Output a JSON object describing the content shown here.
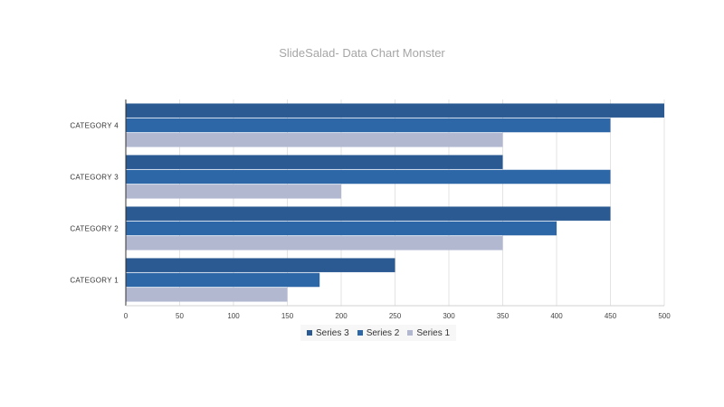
{
  "chart_data": {
    "type": "bar",
    "orientation": "horizontal",
    "title": "SlideSalad-  Data Chart Monster",
    "categories": [
      "CATEGORY  1",
      "CATEGORY  2",
      "CATEGORY  3",
      "CATEGORY  4"
    ],
    "series": [
      {
        "name": "Series 3",
        "color": "#2b5a93",
        "values": [
          250,
          450,
          350,
          500
        ]
      },
      {
        "name": "Series 2",
        "color": "#2d67a8",
        "values": [
          180,
          400,
          450,
          450
        ]
      },
      {
        "name": "Series 1",
        "color": "#b3b8d1",
        "values": [
          150,
          350,
          200,
          350
        ]
      }
    ],
    "xlim": [
      0,
      500
    ],
    "xticks": [
      0,
      50,
      100,
      150,
      200,
      250,
      300,
      350,
      400,
      450,
      500
    ],
    "xlabel": "",
    "ylabel": "",
    "grid": true,
    "legend_position": "bottom"
  }
}
